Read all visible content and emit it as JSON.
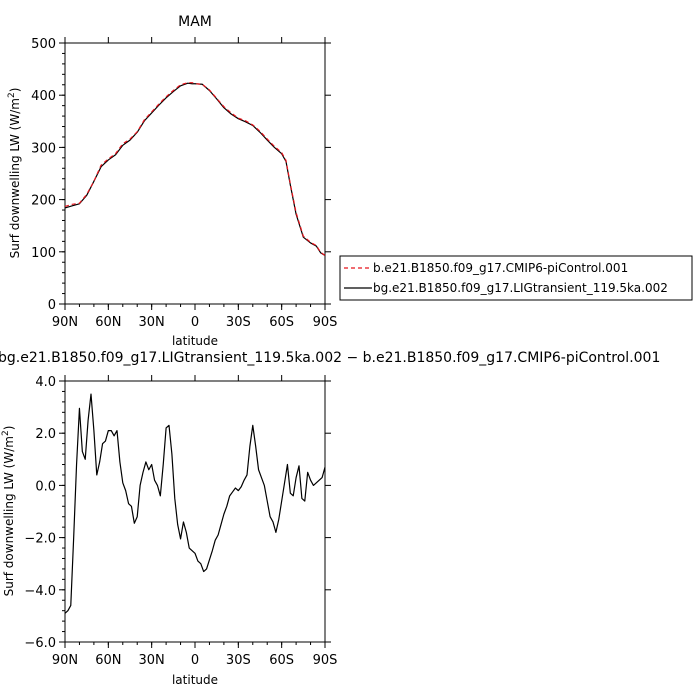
{
  "chart_data": [
    {
      "type": "line",
      "title": "MAM",
      "xlabel": "latitude",
      "ylabel": "Surf downwelling LW (W/m²)",
      "ylabel_main": "Surf downwelling LW (W/m",
      "ylabel_sup": "2",
      "ylabel_close": ")",
      "ylim": [
        0,
        500
      ],
      "xlim": [
        90,
        -90
      ],
      "x_ticks": [
        90,
        60,
        30,
        0,
        -30,
        -60,
        -90
      ],
      "x_tick_labels": [
        "90N",
        "60N",
        "30N",
        "0",
        "30S",
        "60S",
        "90S"
      ],
      "y_ticks": [
        0,
        100,
        200,
        300,
        400,
        500
      ],
      "y_tick_labels": [
        "0",
        "100",
        "200",
        "300",
        "400",
        "500"
      ],
      "legend": "right",
      "series": [
        {
          "name": "b.e21.B1850.f09_g17.CMIP6-piControl.001",
          "color": "#e8141c",
          "dash": "dashed",
          "x": [
            90,
            85,
            80,
            75,
            70,
            65,
            60,
            55,
            50,
            45,
            40,
            35,
            30,
            25,
            20,
            15,
            10,
            5,
            2,
            0,
            -5,
            -10,
            -15,
            -20,
            -25,
            -30,
            -35,
            -40,
            -45,
            -50,
            -55,
            -60,
            -63,
            -66,
            -70,
            -75,
            -80,
            -84,
            -87,
            -90
          ],
          "y": [
            187,
            191,
            193,
            210,
            235,
            266,
            278,
            288,
            307,
            316,
            330,
            353,
            368,
            383,
            397,
            409,
            420,
            424,
            424,
            422,
            421,
            410,
            394,
            378,
            366,
            356,
            351,
            343,
            331,
            316,
            302,
            290,
            275,
            230,
            175,
            130,
            118,
            112,
            99,
            93
          ]
        },
        {
          "name": "bg.e21.B1850.f09_g17.LIGtransient_119.5ka.002",
          "color": "#000000",
          "dash": "solid",
          "x": [
            90,
            85,
            80,
            75,
            70,
            65,
            60,
            55,
            50,
            45,
            40,
            35,
            30,
            25,
            20,
            15,
            10,
            5,
            2,
            0,
            -5,
            -10,
            -15,
            -20,
            -25,
            -30,
            -35,
            -40,
            -45,
            -50,
            -55,
            -60,
            -63,
            -66,
            -70,
            -75,
            -80,
            -84,
            -87,
            -90
          ],
          "y": [
            184,
            188,
            192,
            208,
            235,
            263,
            276,
            286,
            304,
            314,
            329,
            351,
            366,
            381,
            395,
            407,
            418,
            423,
            422,
            422,
            421,
            409,
            393,
            376,
            364,
            355,
            349,
            342,
            329,
            314,
            300,
            288,
            273,
            228,
            172,
            128,
            117,
            111,
            98,
            93
          ]
        }
      ]
    },
    {
      "type": "line",
      "title": "bg.e21.B1850.f09_g17.LIGtransient_119.5ka.002 − b.e21.B1850.f09_g17.CMIP6-piControl.001",
      "xlabel": "latitude",
      "ylabel": "Surf downwelling LW (W/m²)",
      "ylabel_main": "Surf downwelling LW (W/m",
      "ylabel_sup": "2",
      "ylabel_close": ")",
      "ylim": [
        -6.0,
        4.0
      ],
      "xlim": [
        90,
        -90
      ],
      "x_ticks": [
        90,
        60,
        30,
        0,
        -30,
        -60,
        -90
      ],
      "x_tick_labels": [
        "90N",
        "60N",
        "30N",
        "0",
        "30S",
        "60S",
        "90S"
      ],
      "y_ticks": [
        -6,
        -4,
        -2,
        0,
        2,
        4
      ],
      "y_tick_labels": [
        "−6.0",
        "−4.0",
        "−2.0",
        "0.0",
        "2.0",
        "4.0"
      ],
      "series": [
        {
          "color": "#000000",
          "x": [
            90,
            88,
            86,
            84,
            82,
            80,
            78,
            76,
            74,
            72,
            70,
            68,
            66,
            64,
            62,
            60,
            58,
            56,
            54,
            52,
            50,
            48,
            46,
            44,
            42,
            40,
            38,
            36,
            34,
            32,
            30,
            28,
            26,
            24,
            22,
            20,
            18,
            16,
            14,
            12,
            10,
            8,
            6,
            4,
            2,
            0,
            -2,
            -4,
            -6,
            -8,
            -10,
            -12,
            -14,
            -16,
            -18,
            -20,
            -22,
            -24,
            -26,
            -28,
            -30,
            -32,
            -34,
            -36,
            -38,
            -40,
            -42,
            -44,
            -46,
            -48,
            -50,
            -52,
            -54,
            -56,
            -58,
            -60,
            -62,
            -64,
            -66,
            -68,
            -70,
            -72,
            -74,
            -76,
            -78,
            -80,
            -82,
            -84,
            -86,
            -88,
            -89,
            -90
          ],
          "y": [
            -4.9,
            -4.8,
            -4.6,
            -2.0,
            0.8,
            2.95,
            1.3,
            1.0,
            2.5,
            3.5,
            2.1,
            0.4,
            0.9,
            1.6,
            1.7,
            2.1,
            2.1,
            1.9,
            2.1,
            0.9,
            0.1,
            -0.2,
            -0.7,
            -0.8,
            -1.45,
            -1.2,
            0.0,
            0.5,
            0.9,
            0.6,
            0.8,
            0.2,
            0.0,
            -0.4,
            0.8,
            2.2,
            2.3,
            1.2,
            -0.5,
            -1.5,
            -2.05,
            -1.4,
            -1.8,
            -2.4,
            -2.5,
            -2.6,
            -2.9,
            -3.0,
            -3.3,
            -3.2,
            -2.85,
            -2.5,
            -2.1,
            -1.9,
            -1.5,
            -1.1,
            -0.8,
            -0.4,
            -0.25,
            -0.1,
            -0.2,
            -0.05,
            0.2,
            0.4,
            1.5,
            2.3,
            1.5,
            0.6,
            0.3,
            0.0,
            -0.6,
            -1.2,
            -1.4,
            -1.8,
            -1.3,
            -0.6,
            0.1,
            0.8,
            -0.3,
            -0.4,
            0.3,
            0.75,
            -0.5,
            -0.6,
            0.5,
            0.2,
            0.0,
            0.1,
            0.2,
            0.3,
            0.5,
            0.7
          ]
        }
      ]
    }
  ]
}
